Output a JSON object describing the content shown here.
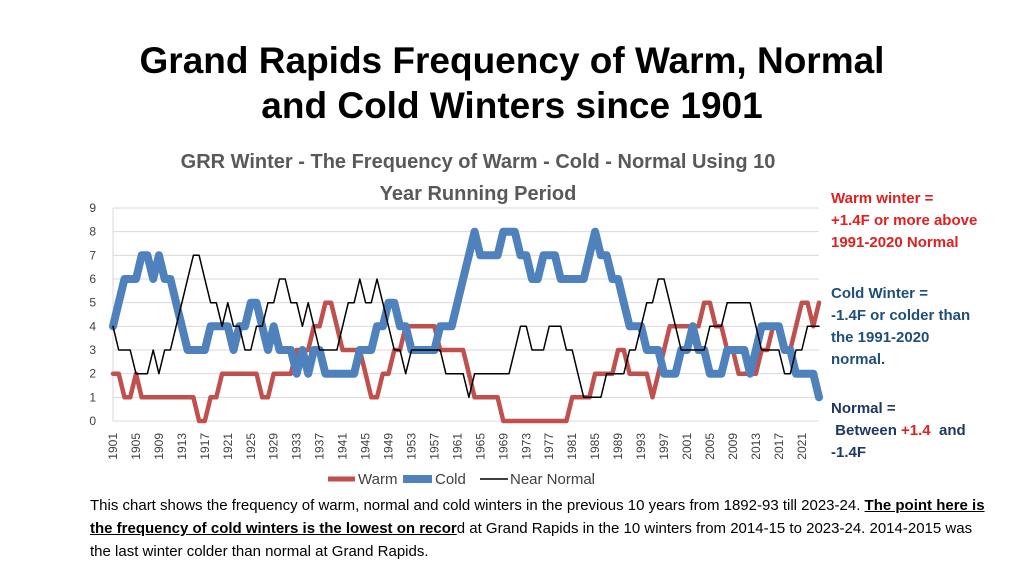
{
  "slide": {
    "title_line1": "Grand Rapids Frequency of Warm, Normal",
    "title_line2": "and Cold Winters since 1901"
  },
  "definitions": {
    "warm": [
      "Warm winter =",
      "+1.4F or more above",
      "1991-2020 Normal"
    ],
    "cold": [
      "Cold Winter =",
      "-1.4F or colder than",
      "the 1991-2020",
      "normal."
    ],
    "normal_line1": "Normal =",
    "normal_between": "Between",
    "normal_pos": "+1.4",
    "normal_and": "and",
    "normal_neg": "-1.4F"
  },
  "caption": {
    "part1": "This chart shows the frequency of warm, normal and cold winters in the previous 10 years from 1892-93 till 2023-24.  ",
    "bold": "The point here is the frequency of cold winters is the lowest on recor",
    "part2": "d at Grand Rapids in the 10 winters from 2014-15 to 2023-24.  2014-2015 was the last winter colder than normal at Grand Rapids."
  },
  "colors": {
    "warm": "#c0504d",
    "cold": "#4f81bd",
    "normal": "#000000"
  },
  "chart_data": {
    "type": "line",
    "title_line1": "GRR Winter - The Frequency of  Warm - Cold - Normal  Using 10",
    "title_line2": "Year Running Period",
    "xlabel": "",
    "ylabel": "",
    "ylim": [
      0,
      9
    ],
    "yticks": [
      0,
      1,
      2,
      3,
      4,
      5,
      6,
      7,
      8,
      9
    ],
    "x_start": 1901,
    "x_end": 2024,
    "xtick_labels": [
      "1901",
      "1905",
      "1909",
      "1913",
      "1917",
      "1921",
      "1925",
      "1929",
      "1933",
      "1937",
      "1941",
      "1945",
      "1949",
      "1953",
      "1957",
      "1961",
      "1965",
      "1969",
      "1973",
      "1977",
      "1981",
      "1985",
      "1989",
      "1993",
      "1997",
      "2001",
      "2005",
      "2009",
      "2013",
      "2017",
      "2021"
    ],
    "legend": [
      "Warm",
      "Cold",
      "Near Normal"
    ],
    "series": [
      {
        "name": "Warm",
        "values": [
          2,
          2,
          1,
          1,
          2,
          1,
          1,
          1,
          1,
          1,
          1,
          1,
          1,
          1,
          1,
          0,
          0,
          1,
          1,
          2,
          2,
          2,
          2,
          2,
          2,
          2,
          1,
          1,
          2,
          2,
          2,
          2,
          3,
          3,
          3,
          4,
          4,
          5,
          5,
          4,
          3,
          3,
          3,
          3,
          2,
          1,
          1,
          2,
          2,
          3,
          3,
          4,
          4,
          4,
          4,
          4,
          4,
          3,
          3,
          3,
          3,
          3,
          2,
          1,
          1,
          1,
          1,
          1,
          0,
          0,
          0,
          0,
          0,
          0,
          0,
          0,
          0,
          0,
          0,
          0,
          1,
          1,
          1,
          1,
          2,
          2,
          2,
          2,
          3,
          3,
          2,
          2,
          2,
          2,
          1,
          2,
          3,
          4,
          4,
          4,
          4,
          4,
          4,
          5,
          5,
          4,
          4,
          3,
          3,
          2,
          2,
          2,
          2,
          3,
          3,
          4,
          4,
          3,
          3,
          4,
          5,
          5,
          4,
          5
        ]
      },
      {
        "name": "Cold",
        "values": [
          4,
          5,
          6,
          6,
          6,
          7,
          7,
          6,
          7,
          6,
          6,
          5,
          4,
          3,
          3,
          3,
          3,
          4,
          4,
          4,
          4,
          3,
          4,
          4,
          5,
          5,
          4,
          3,
          4,
          3,
          3,
          3,
          2,
          3,
          2,
          3,
          3,
          2,
          2,
          2,
          2,
          2,
          2,
          3,
          3,
          3,
          4,
          4,
          5,
          5,
          4,
          4,
          3,
          3,
          3,
          3,
          3,
          4,
          4,
          4,
          5,
          6,
          7,
          8,
          7,
          7,
          7,
          7,
          8,
          8,
          8,
          7,
          7,
          6,
          6,
          7,
          7,
          7,
          6,
          6,
          6,
          6,
          6,
          7,
          8,
          7,
          7,
          6,
          6,
          5,
          4,
          4,
          4,
          3,
          3,
          3,
          2,
          2,
          2,
          3,
          3,
          4,
          3,
          3,
          2,
          2,
          2,
          3,
          3,
          3,
          3,
          2,
          3,
          4,
          4,
          4,
          4,
          3,
          3,
          2,
          2,
          2,
          2,
          1
        ]
      },
      {
        "name": "Near Normal",
        "values": [
          4,
          3,
          3,
          3,
          2,
          2,
          2,
          3,
          2,
          3,
          3,
          4,
          5,
          6,
          7,
          7,
          6,
          5,
          5,
          4,
          5,
          4,
          4,
          3,
          3,
          4,
          4,
          5,
          5,
          6,
          6,
          5,
          5,
          4,
          5,
          4,
          3,
          3,
          3,
          3,
          4,
          5,
          5,
          6,
          5,
          5,
          6,
          5,
          4,
          3,
          3,
          2,
          3,
          3,
          3,
          3,
          3,
          3,
          2,
          2,
          2,
          2,
          1,
          2,
          2,
          2,
          2,
          2,
          2,
          2,
          3,
          4,
          4,
          3,
          3,
          3,
          4,
          4,
          4,
          3,
          3,
          2,
          1,
          1,
          1,
          1,
          2,
          2,
          2,
          2,
          3,
          3,
          4,
          5,
          5,
          6,
          6,
          5,
          4,
          3,
          3,
          3,
          3,
          3,
          4,
          4,
          4,
          5,
          5,
          5,
          5,
          5,
          4,
          3,
          3,
          3,
          3,
          2,
          2,
          3,
          3,
          4,
          4,
          4
        ]
      }
    ]
  }
}
